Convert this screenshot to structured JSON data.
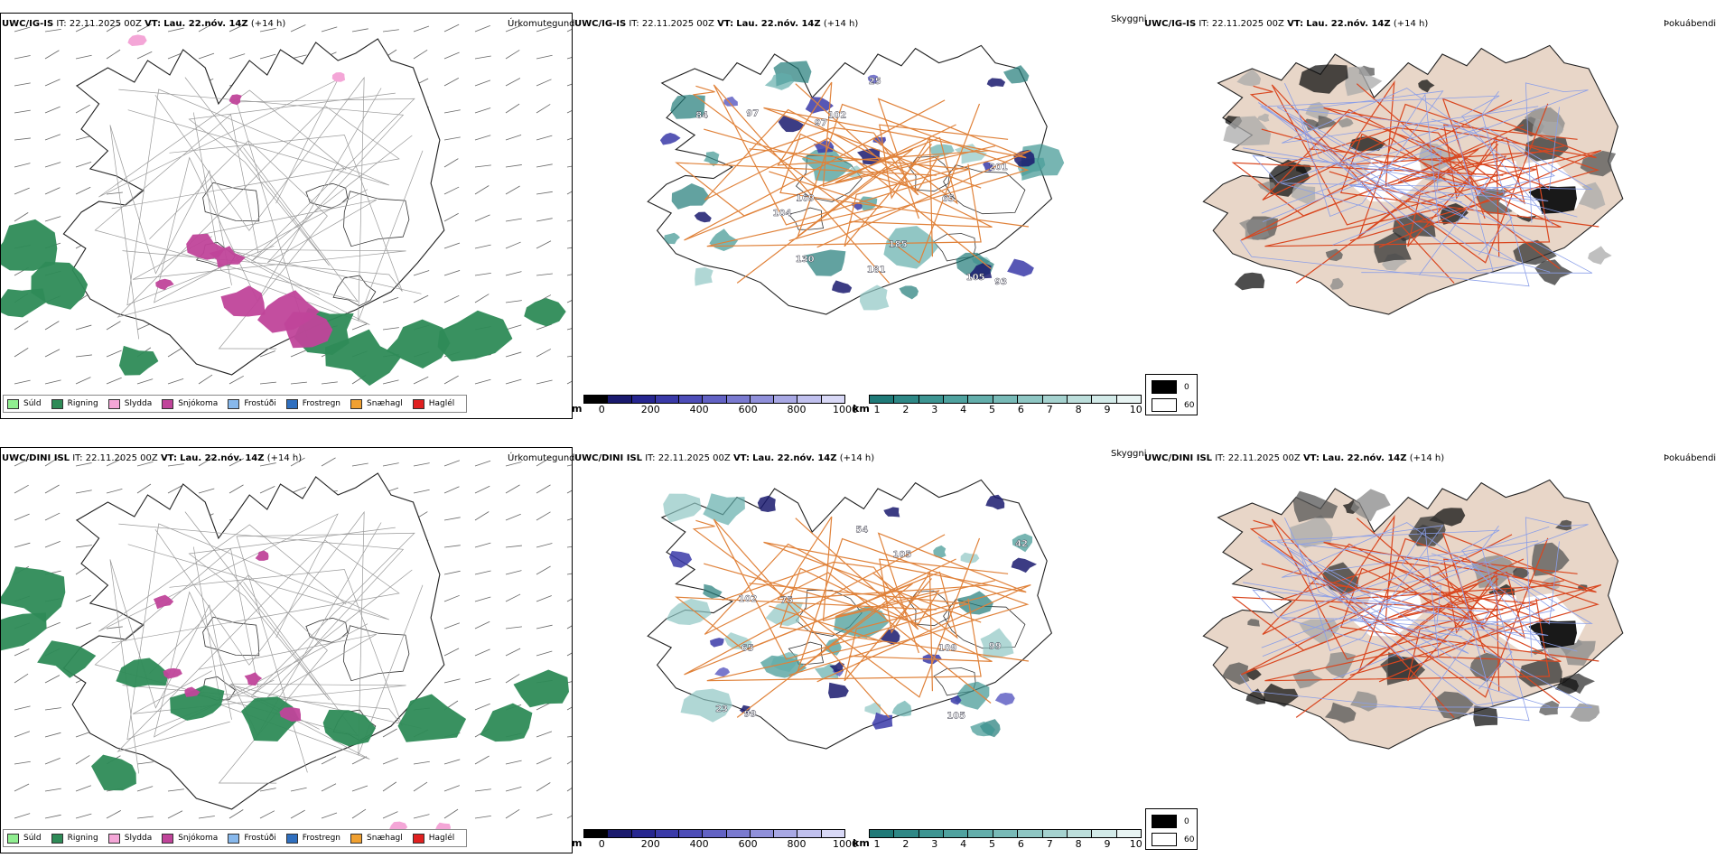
{
  "rows": [
    {
      "model": "UWC/IG-IS",
      "it_label": "IT:",
      "it_value": "22.11.2025 00Z",
      "vt_label": "VT:",
      "vt_value": "Lau. 22.nóv. 14Z",
      "lead": "(+14 h)"
    },
    {
      "model": "UWC/DINI ISL",
      "it_label": "IT:",
      "it_value": "22.11.2025 00Z",
      "vt_label": "VT:",
      "vt_value": "Lau. 22.nóv. 14Z",
      "lead": "(+14 h)"
    }
  ],
  "panel_titles": {
    "precip": "Úrkomutegund",
    "visibility": "Skyggni",
    "fog": "Þokuábendi"
  },
  "precip_legend": [
    {
      "label": "Súld",
      "color": "#90ee90"
    },
    {
      "label": "Rigning",
      "color": "#2e8b57"
    },
    {
      "label": "Slydda",
      "color": "#f4a6d7"
    },
    {
      "label": "Snjókoma",
      "color": "#c0449a"
    },
    {
      "label": "Frostúði",
      "color": "#87b8ec"
    },
    {
      "label": "Frostregn",
      "color": "#2f6fbf"
    },
    {
      "label": "Snæhagl",
      "color": "#f0a030"
    },
    {
      "label": "Haglél",
      "color": "#e02020"
    }
  ],
  "cloudbase_bar": {
    "unit": "m",
    "ticks": [
      "0",
      "200",
      "400",
      "600",
      "800",
      "1000"
    ],
    "colors": [
      "#000000",
      "#1a1a6e",
      "#262690",
      "#3a3aa8",
      "#4d4db8",
      "#6262c4",
      "#7a7ad0",
      "#9090da",
      "#a8a8e4",
      "#c0c0ee",
      "#d8d8f6"
    ]
  },
  "visibility_bar": {
    "unit": "km",
    "ticks": [
      "1",
      "2",
      "3",
      "4",
      "5",
      "6",
      "7",
      "8",
      "9",
      "10"
    ],
    "colors": [
      "#1f7a78",
      "#2e8886",
      "#3d9592",
      "#4fa29f",
      "#63aeab",
      "#78bab7",
      "#8ec6c3",
      "#a5d2cf",
      "#bcdedb",
      "#d2eae8",
      "#e8f4f3"
    ]
  },
  "fog_legend": [
    {
      "value": "0",
      "color": "#000000"
    },
    {
      "value": "60",
      "color": "#ffffff"
    }
  ],
  "map_labels": {
    "top_cloudbase": [
      "130",
      "97",
      "201",
      "104",
      "25",
      "181",
      "105",
      "84",
      "97",
      "102",
      "93",
      "65",
      "169",
      "185"
    ],
    "bottom_cloudbase": [
      "99",
      "102",
      "42",
      "105",
      "75",
      "23",
      "109",
      "105",
      "65",
      "99",
      "54"
    ]
  }
}
